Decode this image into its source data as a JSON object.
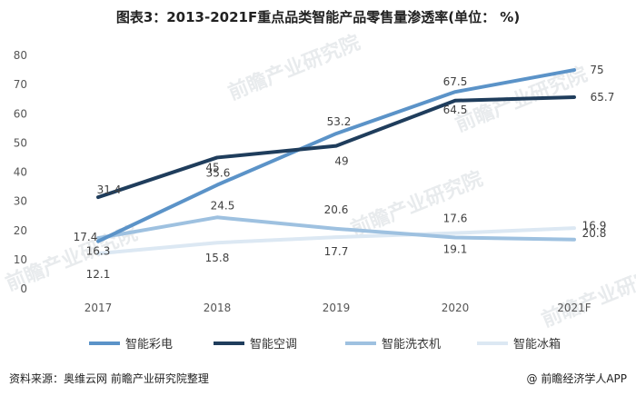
{
  "title": "图表3：2013-2021F重点品类智能产品零售量渗透率(单位： %)",
  "footer": {
    "source": "资料来源：奥维云网 前瞻产业研究院整理",
    "brand_icon": "@",
    "brand": "前瞻经济学人APP"
  },
  "watermark": "前瞻产业研究院",
  "chart_data": {
    "type": "line",
    "categories": [
      "2017",
      "2018",
      "2019",
      "2020",
      "2021F"
    ],
    "ylim": [
      0,
      80
    ],
    "yticks": [
      0,
      10,
      20,
      30,
      40,
      50,
      60,
      70,
      80
    ],
    "ytick_labels": [
      "0",
      "10",
      "20",
      "30",
      "40",
      "50",
      "60",
      "70",
      "80"
    ],
    "grid": false,
    "legend_position": "bottom",
    "series": [
      {
        "name": "智能彩电",
        "color": "#5b93c8",
        "values": [
          16.3,
          35.6,
          53.2,
          67.5,
          75
        ],
        "labels": [
          "16.3",
          "35.6",
          "53.2",
          "67.5",
          "75"
        ]
      },
      {
        "name": "智能空调",
        "color": "#1f3d5c",
        "values": [
          31.4,
          45,
          49,
          64.5,
          65.7
        ],
        "labels": [
          "31.4",
          "45",
          "49",
          "64.5",
          "65.7"
        ]
      },
      {
        "name": "智能洗衣机",
        "color": "#9ec1e0",
        "values": [
          17.4,
          24.5,
          20.6,
          17.6,
          16.9
        ],
        "labels": [
          "17.4",
          "24.5",
          "20.6",
          "17.6",
          "16.9"
        ]
      },
      {
        "name": "智能冰箱",
        "color": "#dce8f3",
        "values": [
          12.1,
          15.8,
          17.7,
          19.1,
          20.8
        ],
        "labels": [
          "12.1",
          "15.8",
          "17.7",
          "19.1",
          "20.8"
        ]
      }
    ]
  }
}
